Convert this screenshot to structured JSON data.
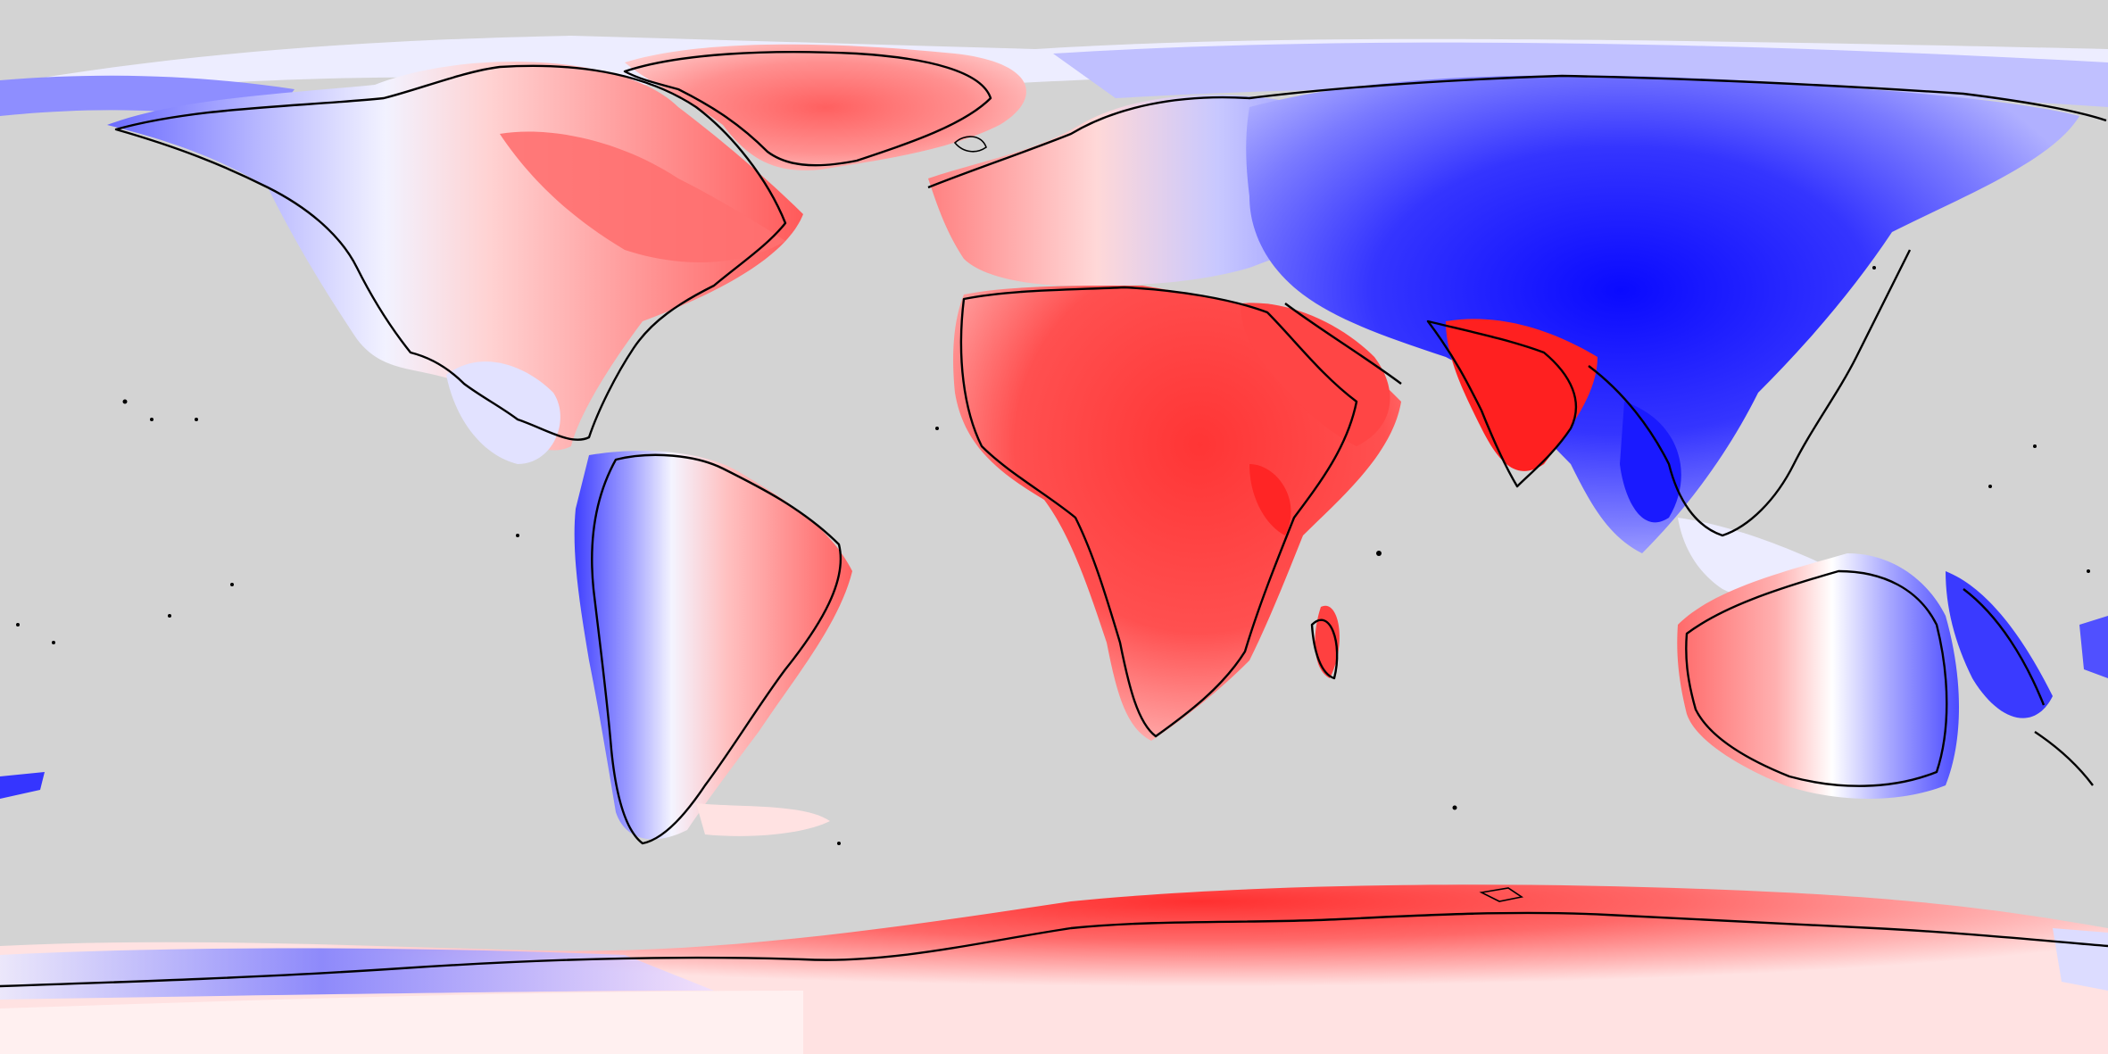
{
  "map": {
    "projection": "equirectangular",
    "ocean_color": "#d3d3d3",
    "coastline_color": "#000000",
    "colorscale": {
      "type": "diverging",
      "colors": [
        "#0000ff",
        "#3f3fff",
        "#7070ff",
        "#a6a6ff",
        "#dcdcff",
        "#ffffff",
        "#ffdcdc",
        "#ffb0b0",
        "#ff8585",
        "#ff5a5a",
        "#ff2e2e",
        "#ff0000"
      ]
    },
    "legend": null,
    "title": null
  }
}
